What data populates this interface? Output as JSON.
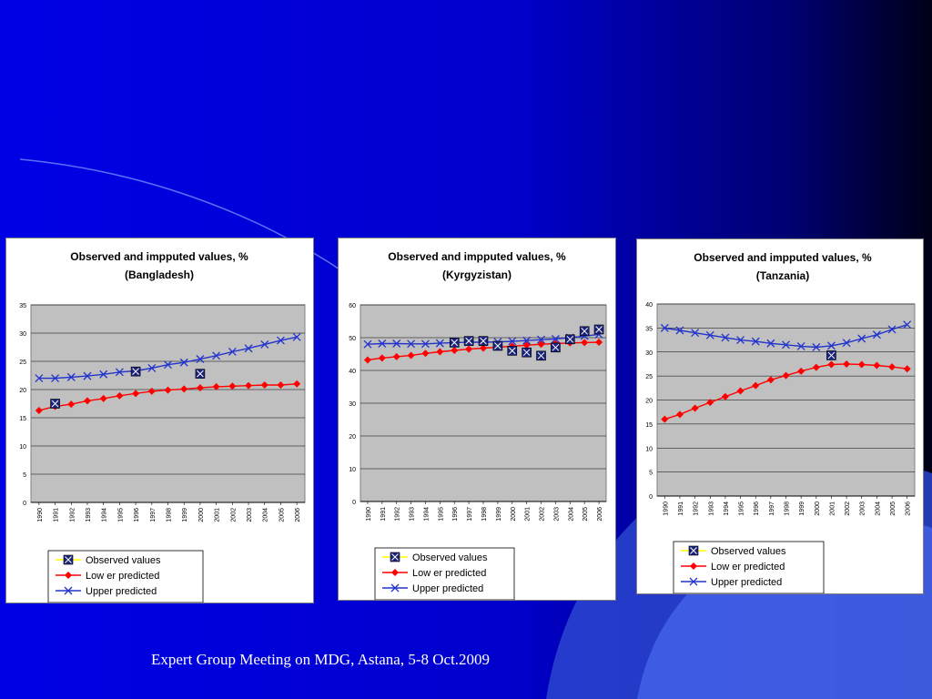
{
  "slide": {
    "footer": "Expert Group Meeting on MDG, Astana, 5-8 Oct.2009",
    "colors": {
      "bg_main": "#0000e6",
      "bg_dark": "#000020",
      "accent": "#3d5bd9"
    }
  },
  "chart_data": [
    {
      "type": "line",
      "title": "Observed and impputed values, %",
      "subtitle": "(Bangladesh)",
      "x": [
        "1990",
        "1991",
        "1992",
        "1993",
        "1994",
        "1995",
        "1996",
        "1997",
        "1998",
        "1999",
        "2000",
        "2001",
        "2002",
        "2003",
        "2004",
        "2005",
        "2006"
      ],
      "ylim": [
        0,
        35
      ],
      "yticks": [
        0,
        5,
        10,
        15,
        20,
        25,
        30,
        35
      ],
      "grid": true,
      "legend": "bottom",
      "series": [
        {
          "name": "Observed values",
          "marker": "x-square",
          "color": "#1a237e",
          "values": [
            null,
            17.5,
            null,
            null,
            null,
            null,
            23.2,
            null,
            null,
            null,
            22.8,
            null,
            null,
            null,
            null,
            null,
            null
          ]
        },
        {
          "name": "Low er predicted",
          "marker": "diamond",
          "color": "#ff0000",
          "values": [
            16.3,
            17.0,
            17.4,
            18.0,
            18.4,
            18.9,
            19.3,
            19.7,
            19.9,
            20.1,
            20.3,
            20.5,
            20.6,
            20.7,
            20.8,
            20.8,
            21.0
          ]
        },
        {
          "name": "Upper predicted",
          "marker": "x",
          "color": "#2233cc",
          "values": [
            22.0,
            22.0,
            22.2,
            22.4,
            22.7,
            23.1,
            23.3,
            23.8,
            24.4,
            24.8,
            25.4,
            26.0,
            26.7,
            27.3,
            28.0,
            28.7,
            29.3
          ]
        }
      ]
    },
    {
      "type": "line",
      "title": "Observed and impputed values, %",
      "subtitle": "(Kyrgyzistan)",
      "x": [
        "1990",
        "1991",
        "1992",
        "1993",
        "1994",
        "1995",
        "1996",
        "1997",
        "1998",
        "1999",
        "2000",
        "2001",
        "2002",
        "2003",
        "2004",
        "2005",
        "2006"
      ],
      "ylim": [
        0,
        60
      ],
      "yticks": [
        0,
        10,
        20,
        30,
        40,
        50,
        60
      ],
      "grid": true,
      "legend": "bottom",
      "series": [
        {
          "name": "Observed values",
          "marker": "x-square",
          "color": "#1a237e",
          "values": [
            null,
            null,
            null,
            null,
            null,
            null,
            48.5,
            49.0,
            49.0,
            47.5,
            46.0,
            45.5,
            44.5,
            47.0,
            49.5,
            52.0,
            52.5
          ]
        },
        {
          "name": "Low er predicted",
          "marker": "diamond",
          "color": "#ff0000",
          "values": [
            43.2,
            43.8,
            44.2,
            44.6,
            45.2,
            45.7,
            46.1,
            46.5,
            46.8,
            47.1,
            47.4,
            47.7,
            48.0,
            48.2,
            48.4,
            48.5,
            48.6
          ]
        },
        {
          "name": "Upper predicted",
          "marker": "x",
          "color": "#2233cc",
          "values": [
            48.0,
            48.2,
            48.2,
            48.1,
            48.1,
            48.3,
            48.5,
            48.6,
            48.6,
            48.7,
            48.9,
            49.1,
            49.4,
            49.6,
            50.0,
            50.5,
            51.0
          ]
        }
      ]
    },
    {
      "type": "line",
      "title": "Observed and impputed values, %",
      "subtitle": "(Tanzania)",
      "x": [
        "1990",
        "1991",
        "1992",
        "1993",
        "1994",
        "1995",
        "1996",
        "1997",
        "1998",
        "1999",
        "2000",
        "2001",
        "2002",
        "2003",
        "2004",
        "2005",
        "2006"
      ],
      "ylim": [
        0,
        40
      ],
      "yticks": [
        0,
        5,
        10,
        15,
        20,
        25,
        30,
        35,
        40
      ],
      "grid": true,
      "legend": "bottom",
      "series": [
        {
          "name": "Observed values",
          "marker": "x-square",
          "color": "#1a237e",
          "values": [
            null,
            null,
            null,
            null,
            null,
            null,
            null,
            null,
            null,
            null,
            null,
            29.3,
            null,
            null,
            null,
            null,
            null
          ]
        },
        {
          "name": "Low er predicted",
          "marker": "diamond",
          "color": "#ff0000",
          "values": [
            16.0,
            17.0,
            18.3,
            19.5,
            20.7,
            21.9,
            23.0,
            24.2,
            25.1,
            26.0,
            26.8,
            27.4,
            27.5,
            27.4,
            27.2,
            26.9,
            26.5
          ]
        },
        {
          "name": "Upper predicted",
          "marker": "x",
          "color": "#2233cc",
          "values": [
            35.0,
            34.5,
            34.0,
            33.5,
            33.0,
            32.5,
            32.2,
            31.8,
            31.5,
            31.2,
            31.0,
            31.3,
            31.9,
            32.8,
            33.6,
            34.7,
            35.7
          ]
        }
      ]
    }
  ]
}
